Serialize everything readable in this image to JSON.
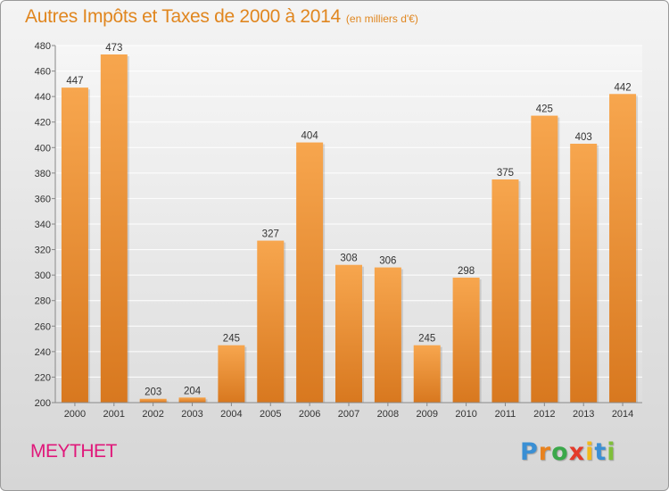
{
  "header": {
    "title": "Autres Impôts et Taxes de 2000 à 2014",
    "unit": "(en milliers d'€)"
  },
  "footer": {
    "place": "MEYTHET",
    "logo_letters": [
      "P",
      "r",
      "o",
      "x",
      "i",
      "t",
      "i"
    ],
    "logo_colors": [
      "#3a8fd4",
      "#e8821e",
      "#3aa84a",
      "#e43a2a",
      "#f2b91a",
      "#3a8fd4",
      "#7fbf3a"
    ]
  },
  "colors": {
    "title": "#e0861f",
    "bar_top": "#f7a64e",
    "bar_bottom": "#d8781f",
    "place": "#e0187a"
  },
  "chart_data": {
    "type": "bar",
    "title": "Autres Impôts et Taxes de 2000 à 2014",
    "categories": [
      "2000",
      "2001",
      "2002",
      "2003",
      "2004",
      "2005",
      "2006",
      "2007",
      "2008",
      "2009",
      "2010",
      "2011",
      "2012",
      "2013",
      "2014"
    ],
    "values": [
      447,
      473,
      203,
      204,
      245,
      327,
      404,
      308,
      306,
      245,
      298,
      375,
      425,
      403,
      442
    ],
    "ylim": [
      200,
      480
    ],
    "yticks": [
      200,
      220,
      240,
      260,
      280,
      300,
      320,
      340,
      360,
      380,
      400,
      420,
      440,
      460,
      480
    ],
    "grid": true,
    "xlabel": "",
    "ylabel": ""
  }
}
